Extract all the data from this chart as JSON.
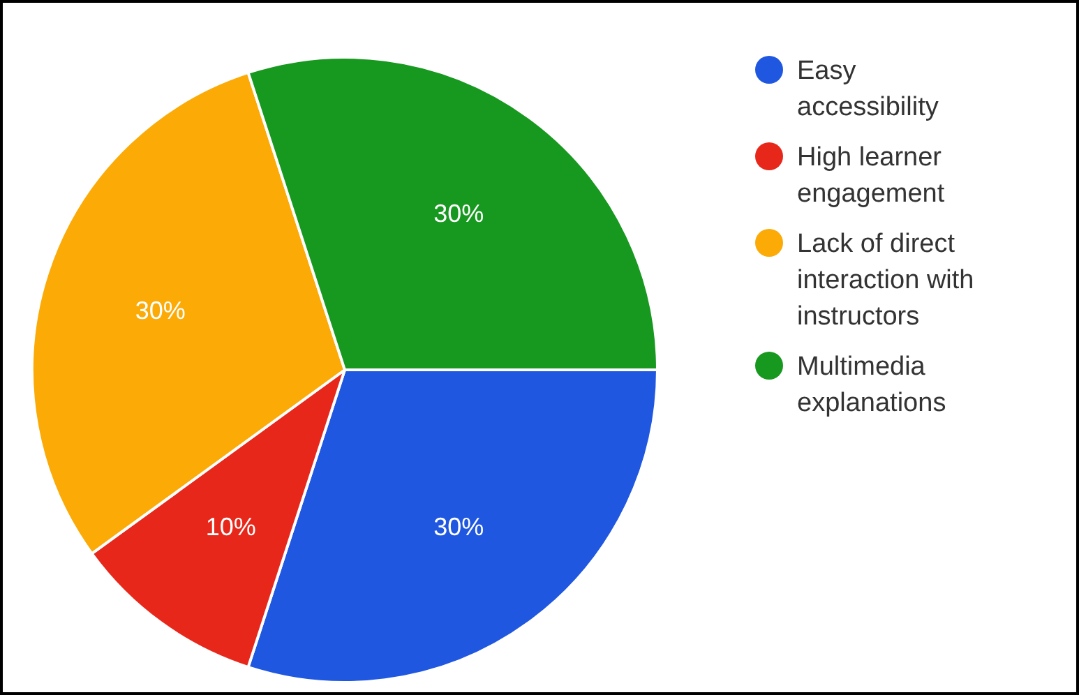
{
  "chart_data": {
    "type": "pie",
    "categories": [
      "Easy accessibility",
      "High learner engagement",
      "Lack of direct interaction with instructors",
      "Multimedia explanations"
    ],
    "values": [
      30,
      10,
      30,
      30
    ],
    "colors": [
      "#1f57e0",
      "#e8271b",
      "#fbaa06",
      "#17981f"
    ],
    "value_labels": [
      "30%",
      "10%",
      "30%",
      "30%"
    ],
    "legend": "top right"
  }
}
